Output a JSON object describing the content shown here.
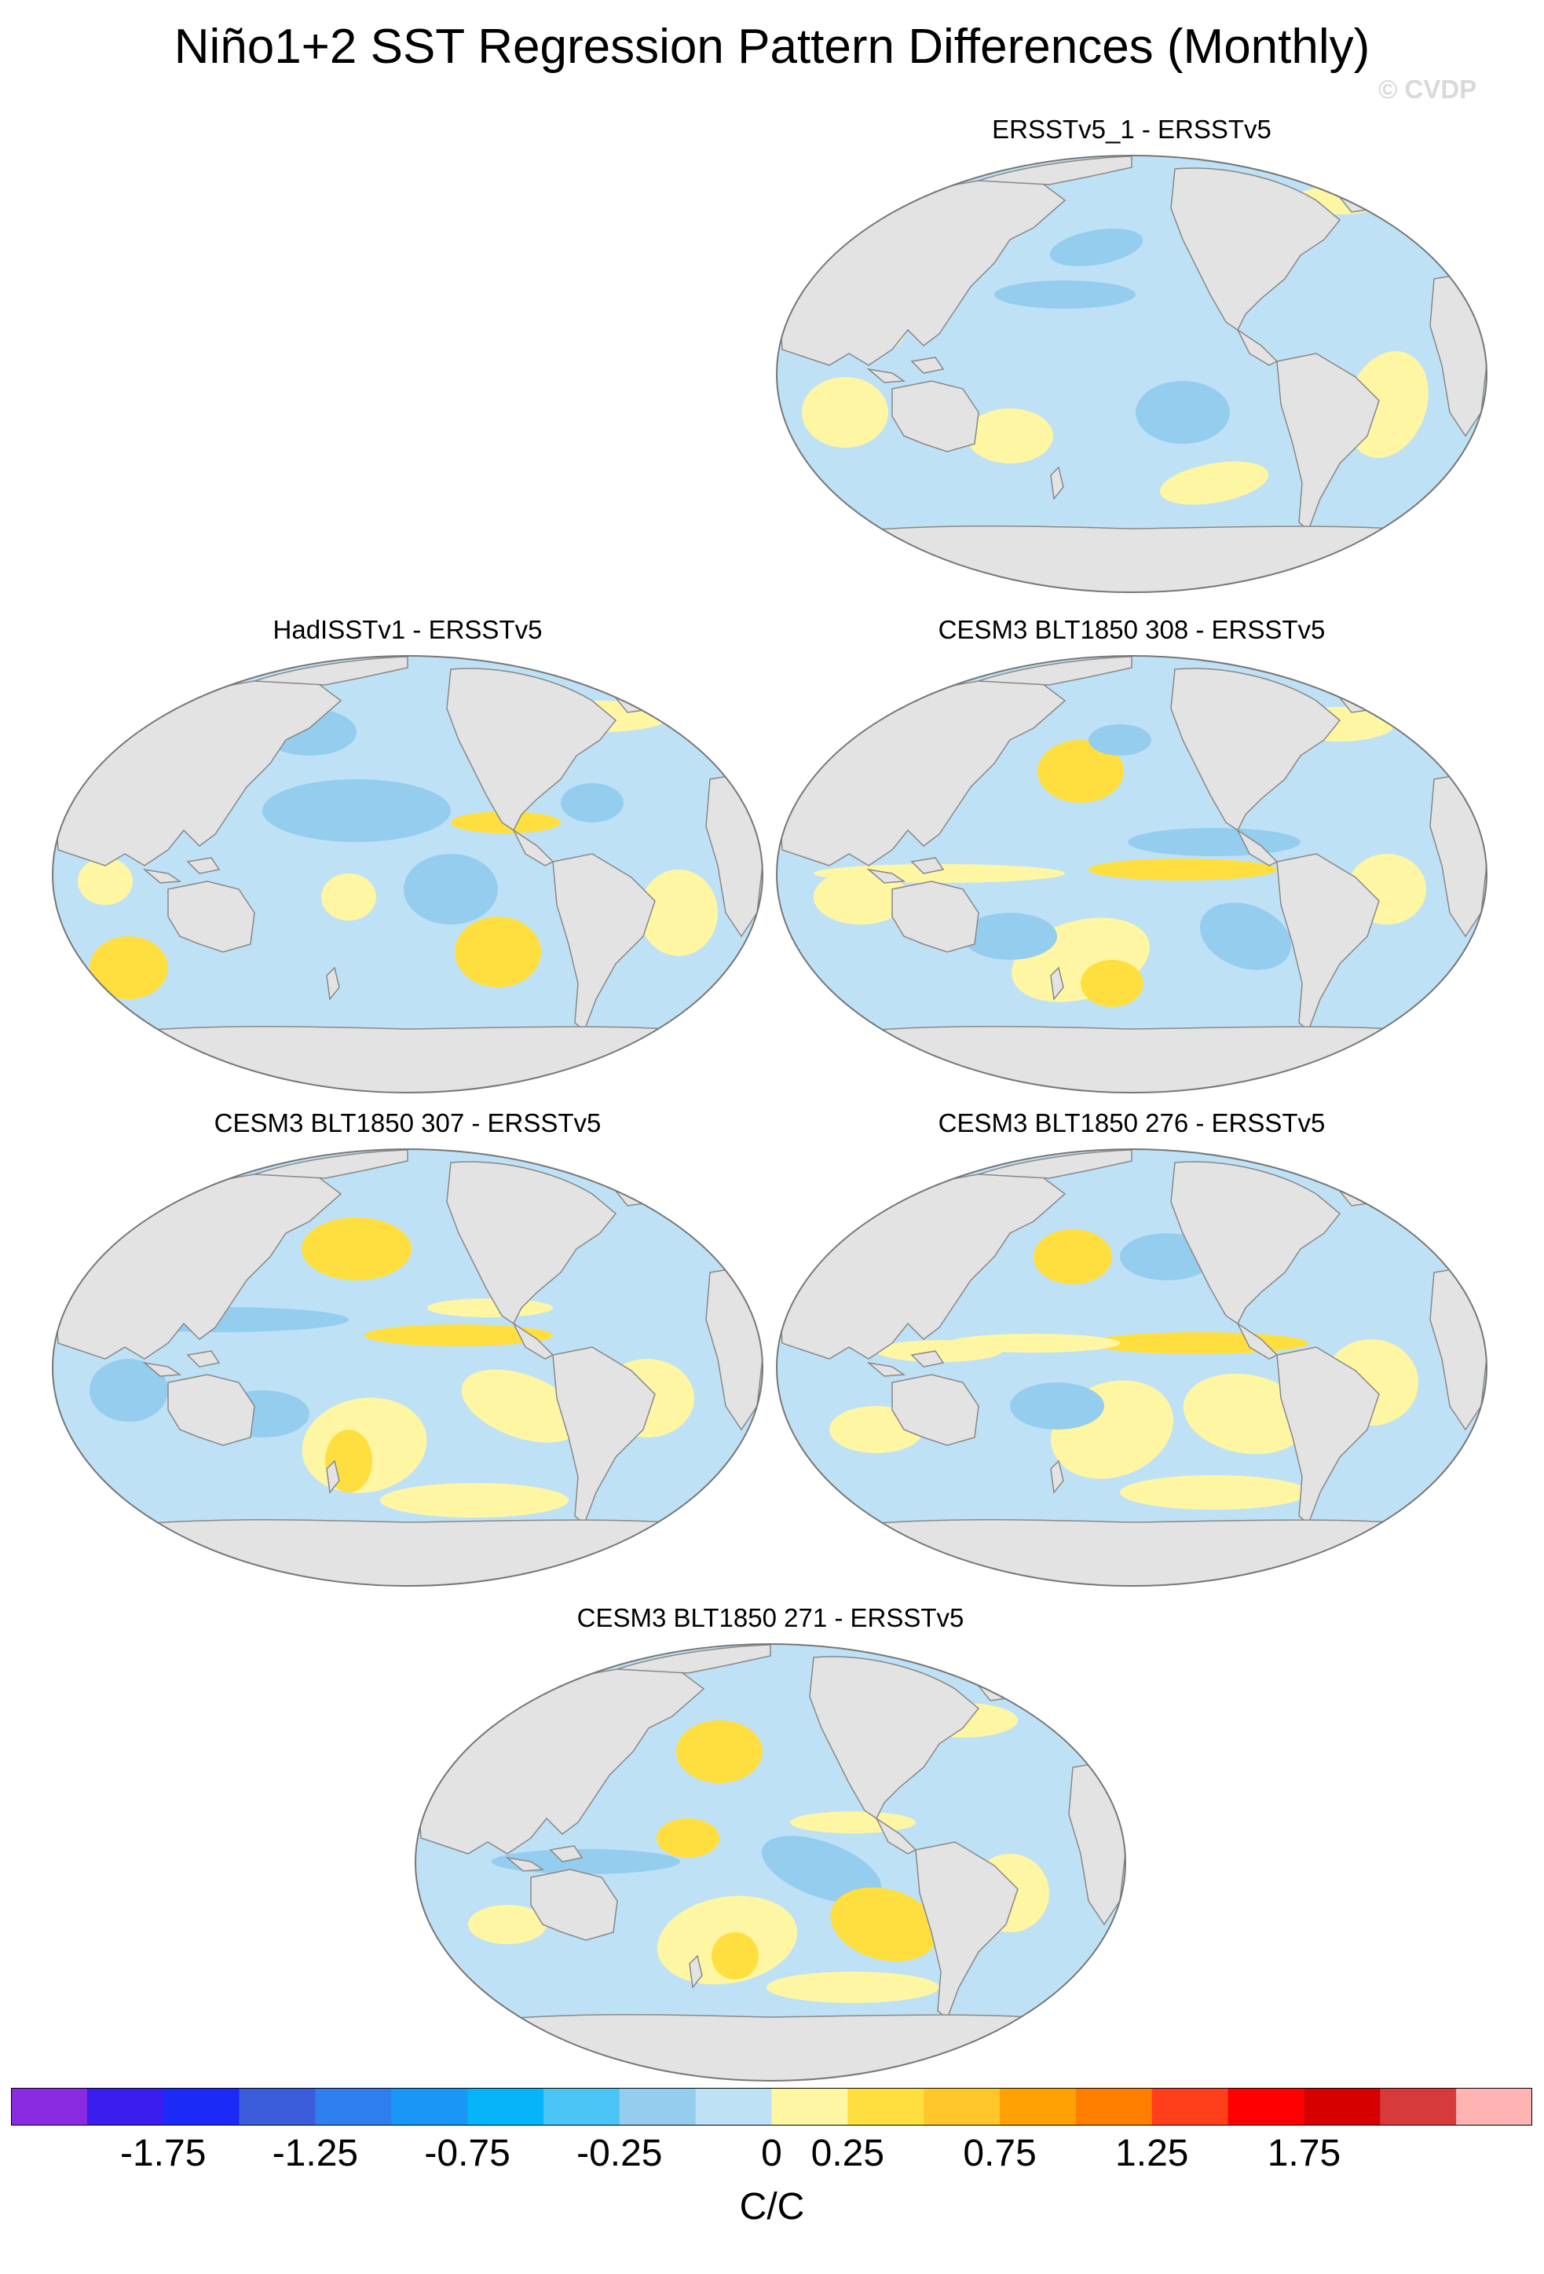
{
  "header": {
    "title": "Niño1+2 SST Regression Pattern Differences (Monthly)",
    "watermark": "© CVDP"
  },
  "panels": [
    {
      "title": "ERSSTv5_1 - ERSSTv5"
    },
    {
      "title": "HadISSTv1 - ERSSTv5"
    },
    {
      "title": "CESM3 BLT1850 308 - ERSSTv5"
    },
    {
      "title": "CESM3 BLT1850 307 - ERSSTv5"
    },
    {
      "title": "CESM3 BLT1850 276 - ERSSTv5"
    },
    {
      "title": "CESM3 BLT1850 271 - ERSSTv5"
    }
  ],
  "map_colors": {
    "land": "#e3e3e3",
    "coast": "#888888",
    "ocean_neutral": "#bfe1f6",
    "ocean_weak_neg": "#94cdee",
    "ocean_weak_pos": "#fff6a3",
    "ocean_pos": "#ffdf3f",
    "ocean_strong_pos": "#ffc72a"
  },
  "colorbar": {
    "unit": "C/C",
    "tick_labels": [
      "-1.75",
      "-1.25",
      "-0.75",
      "-0.25",
      "0",
      "0.25",
      "0.75",
      "1.25",
      "1.75"
    ],
    "colors": [
      "#8a2be2",
      "#3a1ef0",
      "#1b2af7",
      "#3c5ddb",
      "#2f7ef0",
      "#1a96f7",
      "#06b4fa",
      "#4ac4f4",
      "#94cdee",
      "#bfe1f6",
      "#fff6a3",
      "#ffdf3f",
      "#ffc72a",
      "#ffa105",
      "#ff7e00",
      "#ff3e1b",
      "#ff0000",
      "#d60000",
      "#d63a3a",
      "#ffb4b4"
    ]
  }
}
